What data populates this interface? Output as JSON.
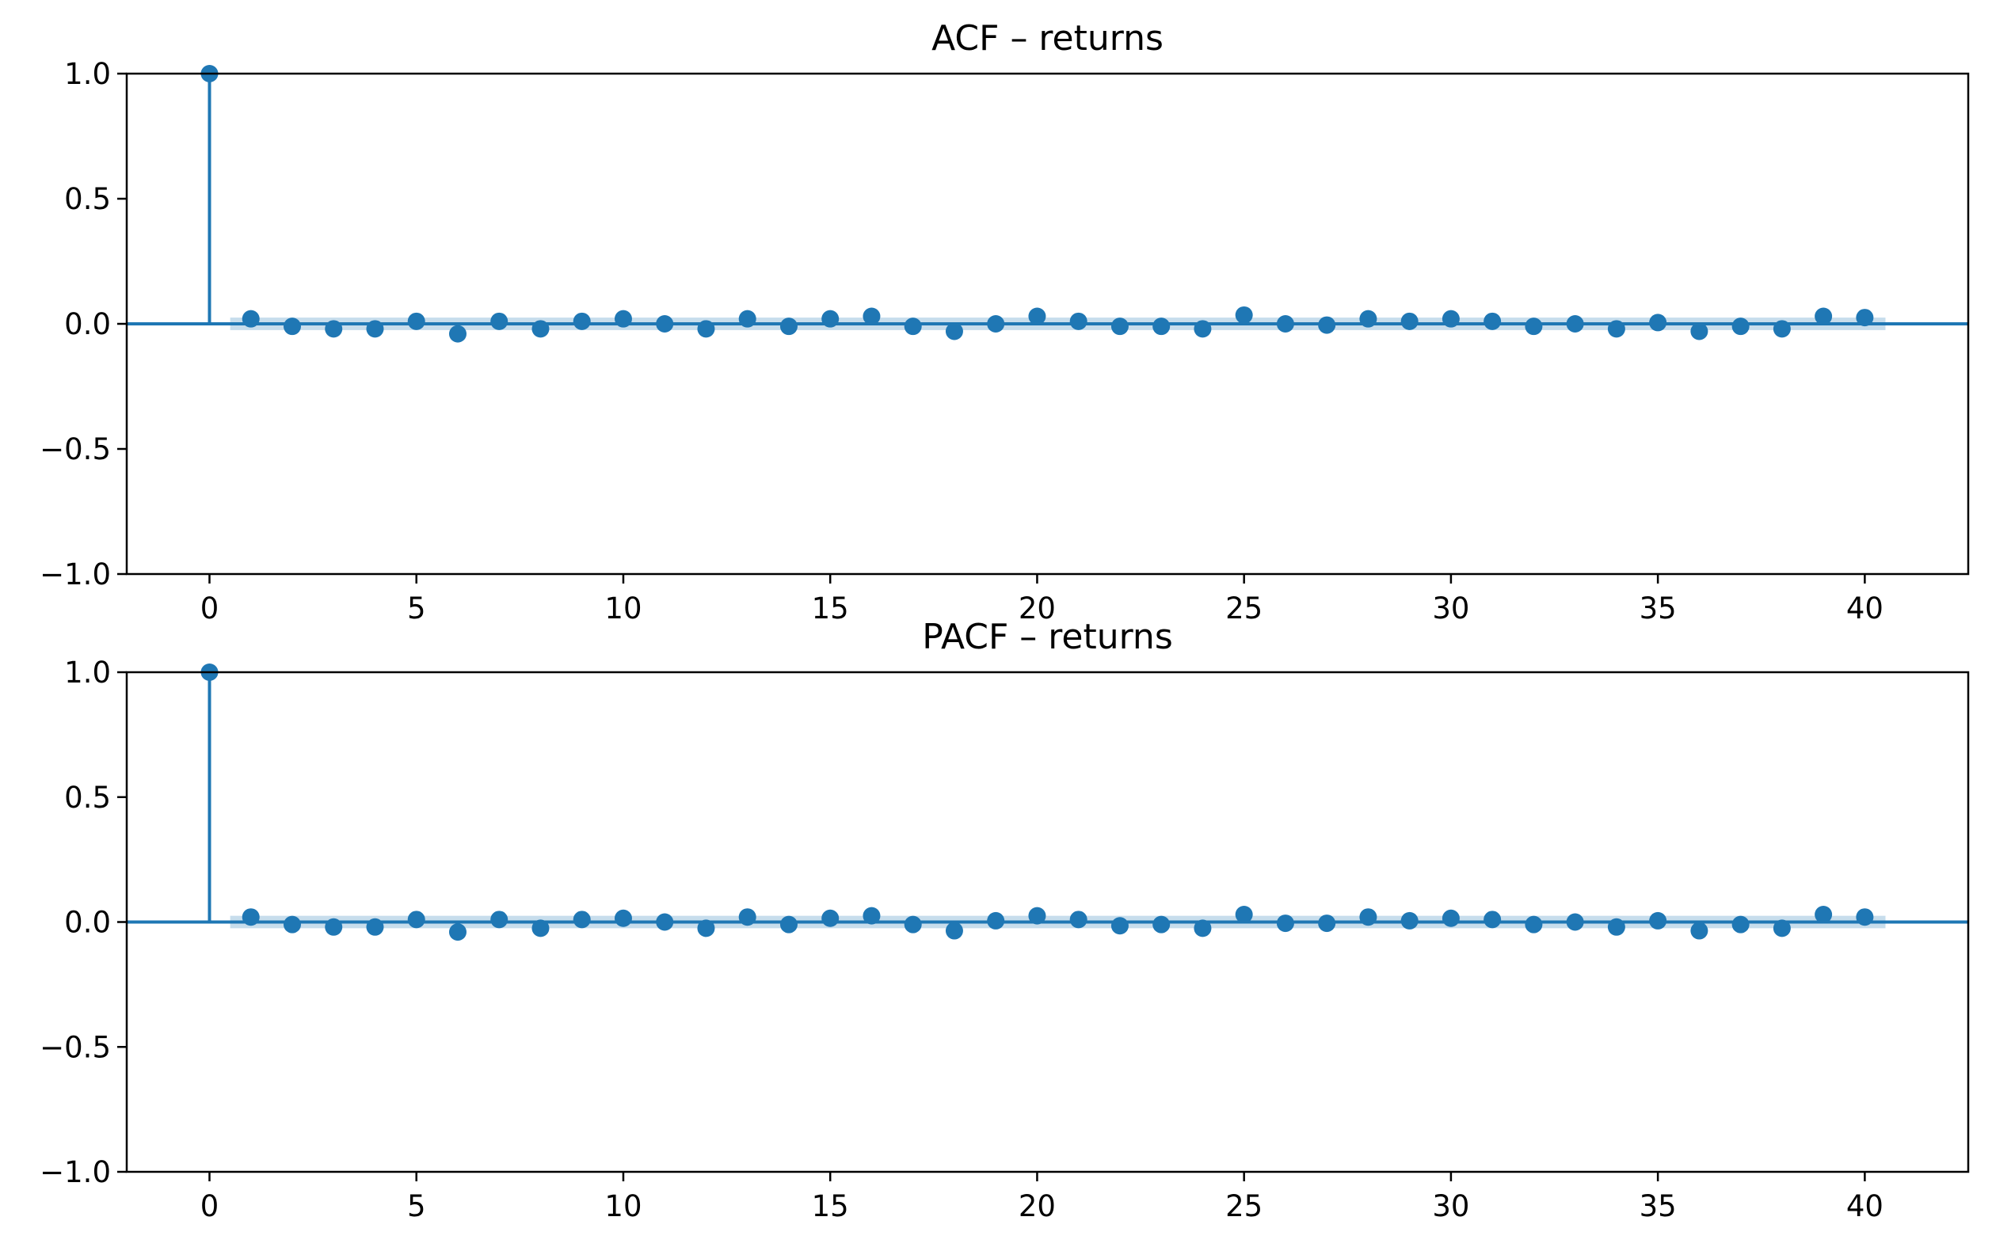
{
  "chart_data": [
    {
      "type": "stem",
      "title": "ACF – returns",
      "xlabel": "",
      "ylabel": "",
      "xlim": [
        -2,
        42.5
      ],
      "ylim": [
        -1.0,
        1.0
      ],
      "xticks": [
        0,
        5,
        10,
        15,
        20,
        25,
        30,
        35,
        40
      ],
      "yticks": [
        1.0,
        0.5,
        0.0,
        -0.5,
        -1.0
      ],
      "xtick_labels": [
        "0",
        "5",
        "10",
        "15",
        "20",
        "25",
        "30",
        "35",
        "40"
      ],
      "ytick_labels": [
        "1.0",
        "0.5",
        "0.0",
        "−0.5",
        "−1.0"
      ],
      "grid": false,
      "lags": [
        0,
        1,
        2,
        3,
        4,
        5,
        6,
        7,
        8,
        9,
        10,
        11,
        12,
        13,
        14,
        15,
        16,
        17,
        18,
        19,
        20,
        21,
        22,
        23,
        24,
        25,
        26,
        27,
        28,
        29,
        30,
        31,
        32,
        33,
        34,
        35,
        36,
        37,
        38,
        39,
        40
      ],
      "values": [
        1.0,
        0.02,
        -0.01,
        -0.02,
        -0.02,
        0.01,
        -0.04,
        0.01,
        -0.02,
        0.01,
        0.02,
        0.0,
        -0.02,
        0.02,
        -0.01,
        0.02,
        0.03,
        -0.01,
        -0.03,
        0.0,
        0.03,
        0.01,
        -0.01,
        -0.01,
        -0.02,
        0.035,
        0.0,
        -0.005,
        0.02,
        0.01,
        0.02,
        0.01,
        -0.01,
        0.0,
        -0.02,
        0.005,
        -0.03,
        -0.01,
        -0.02,
        0.03,
        0.025
      ],
      "confidence_band": 0.025
    },
    {
      "type": "stem",
      "title": "PACF – returns",
      "xlabel": "",
      "ylabel": "",
      "xlim": [
        -2,
        42.5
      ],
      "ylim": [
        -1.0,
        1.0
      ],
      "xticks": [
        0,
        5,
        10,
        15,
        20,
        25,
        30,
        35,
        40
      ],
      "yticks": [
        1.0,
        0.5,
        0.0,
        -0.5,
        -1.0
      ],
      "xtick_labels": [
        "0",
        "5",
        "10",
        "15",
        "20",
        "25",
        "30",
        "35",
        "40"
      ],
      "ytick_labels": [
        "1.0",
        "0.5",
        "0.0",
        "−0.5",
        "−1.0"
      ],
      "grid": false,
      "lags": [
        0,
        1,
        2,
        3,
        4,
        5,
        6,
        7,
        8,
        9,
        10,
        11,
        12,
        13,
        14,
        15,
        16,
        17,
        18,
        19,
        20,
        21,
        22,
        23,
        24,
        25,
        26,
        27,
        28,
        29,
        30,
        31,
        32,
        33,
        34,
        35,
        36,
        37,
        38,
        39,
        40
      ],
      "values": [
        1.0,
        0.02,
        -0.01,
        -0.02,
        -0.02,
        0.01,
        -0.04,
        0.01,
        -0.025,
        0.01,
        0.015,
        0.0,
        -0.025,
        0.02,
        -0.01,
        0.015,
        0.025,
        -0.01,
        -0.035,
        0.005,
        0.025,
        0.01,
        -0.015,
        -0.01,
        -0.025,
        0.03,
        -0.005,
        -0.005,
        0.02,
        0.005,
        0.015,
        0.01,
        -0.01,
        0.0,
        -0.02,
        0.005,
        -0.035,
        -0.01,
        -0.025,
        0.03,
        0.02
      ],
      "confidence_band": 0.025
    }
  ],
  "colors": {
    "series": "#1f77b4",
    "band": "#1f77b4",
    "axes": "#000000"
  }
}
